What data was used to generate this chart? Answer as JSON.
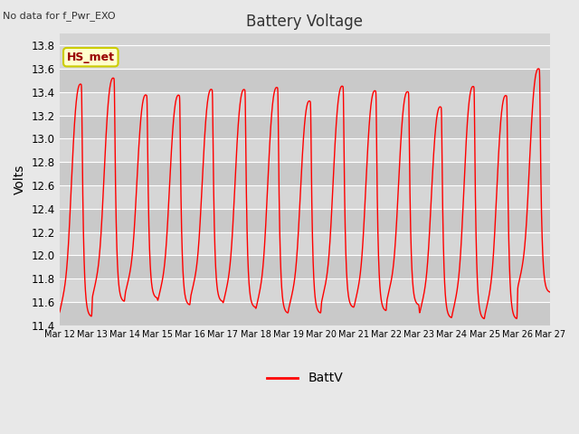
{
  "title": "Battery Voltage",
  "no_data_text": "No data for f_Pwr_EXO",
  "ylabel": "Volts",
  "legend_label": "BattV",
  "line_color": "red",
  "fig_bg_color": "#e8e8e8",
  "plot_bg_color": "#d4d4d4",
  "ylim": [
    11.4,
    13.9
  ],
  "yticks": [
    11.4,
    11.6,
    11.8,
    12.0,
    12.2,
    12.4,
    12.6,
    12.8,
    13.0,
    13.2,
    13.4,
    13.6,
    13.8
  ],
  "xtick_labels": [
    "Mar 12",
    "Mar 13",
    "Mar 14",
    "Mar 15",
    "Mar 16",
    "Mar 17",
    "Mar 18",
    "Mar 19",
    "Mar 20",
    "Mar 21",
    "Mar 22",
    "Mar 23",
    "Mar 24",
    "Mar 25",
    "Mar 26",
    "Mar 27"
  ],
  "legend_box_facecolor": "#ffffcc",
  "legend_box_edgecolor": "#cccc00",
  "hs_met_text": "HS_met",
  "hs_met_color": "#990000",
  "grid_color": "#ffffff",
  "alt_band_color": "#c8c8c8"
}
